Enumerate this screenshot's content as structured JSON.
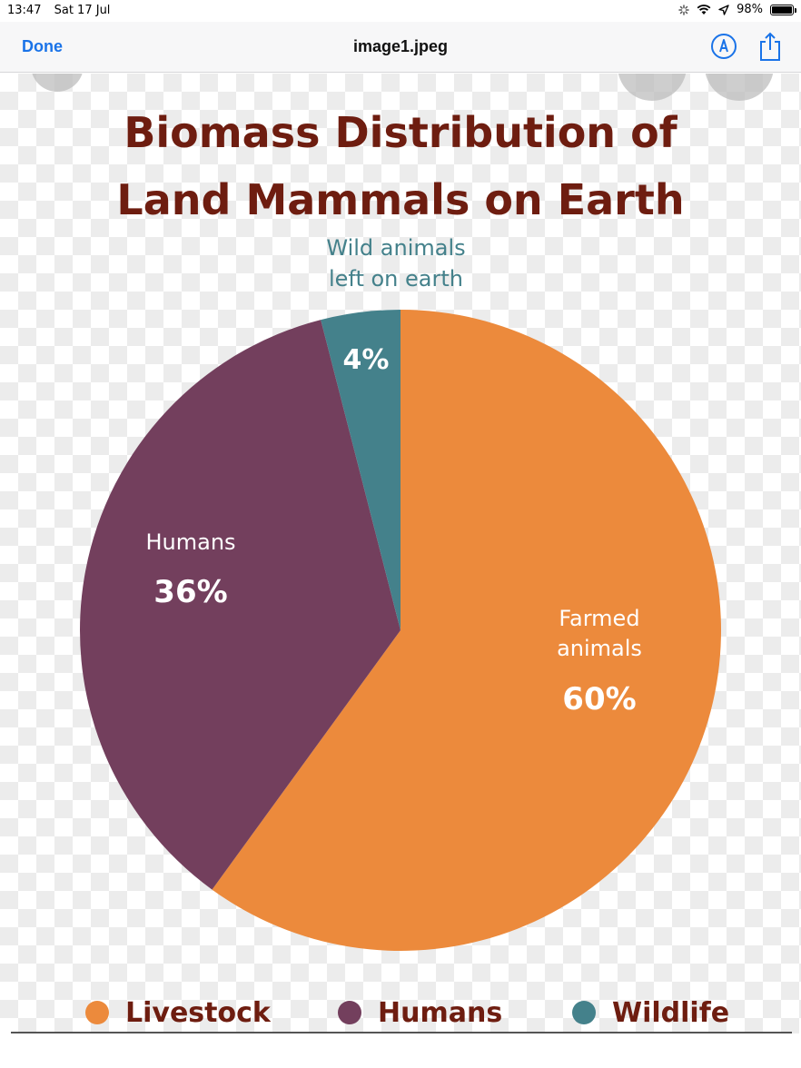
{
  "status_bar": {
    "time": "13:47",
    "date": "Sat 17 Jul",
    "battery": "98%",
    "battery_level": 0.98
  },
  "nav": {
    "done_label": "Done",
    "title": "image1.jpeg"
  },
  "icons": {
    "markup": "markup-pen-icon",
    "share": "share-icon",
    "wifi": "wifi-icon",
    "location": "location-arrow-icon",
    "loading": "activity-spinner-icon"
  },
  "colors": {
    "livestock": "#ec8a3c",
    "humans": "#733f5d",
    "wildlife": "#44818b",
    "title": "#6e1d10",
    "accent": "#1a73e8"
  },
  "chart_data": {
    "type": "pie",
    "title_lines": [
      "Biomass Distribution of",
      "Land Mammals on Earth"
    ],
    "slices": [
      {
        "key": "livestock",
        "label_lines": [
          "Farmed",
          "animals"
        ],
        "value": 60,
        "value_label": "60%"
      },
      {
        "key": "humans",
        "label_lines": [
          "Humans"
        ],
        "value": 36,
        "value_label": "36%"
      },
      {
        "key": "wildlife",
        "label_lines": [
          "Wild animals",
          "left on earth"
        ],
        "value": 4,
        "value_label": "4%"
      }
    ],
    "legend": [
      {
        "key": "livestock",
        "label": "Livestock"
      },
      {
        "key": "humans",
        "label": "Humans"
      },
      {
        "key": "wildlife",
        "label": "Wildlife"
      }
    ],
    "legend_position": "bottom"
  }
}
